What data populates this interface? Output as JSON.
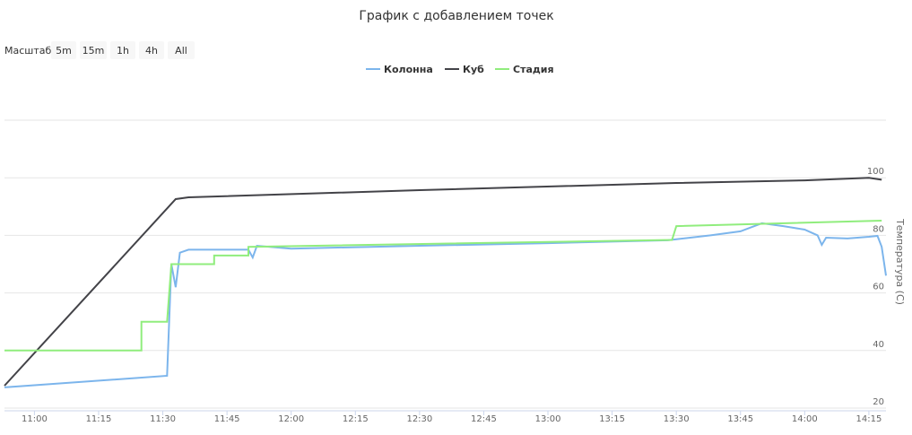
{
  "chart_data": {
    "type": "line",
    "title": "График с добавлением точек",
    "range_selector": {
      "label": "Масштаб",
      "buttons": [
        "5m",
        "15m",
        "1h",
        "4h",
        "All"
      ]
    },
    "y_label": "Температура (С)",
    "xlim": [
      "10:53",
      "14:19"
    ],
    "xticks": [
      "11:00",
      "11:15",
      "11:30",
      "11:45",
      "12:00",
      "12:15",
      "12:30",
      "12:45",
      "13:00",
      "13:15",
      "13:30",
      "13:45",
      "14:00",
      "14:15"
    ],
    "ylim": [
      20,
      120
    ],
    "yticks": [
      20,
      40,
      60,
      80,
      100
    ],
    "grid": true,
    "series": [
      {
        "name": "Колонна",
        "color": "#7cb5ec",
        "x": [
          "10:53",
          "11:31",
          "11:32",
          "11:33",
          "11:34",
          "11:36",
          "11:50",
          "11:51",
          "11:52",
          "12:00",
          "12:30",
          "13:00",
          "13:28",
          "13:38",
          "13:45",
          "13:50",
          "13:55",
          "14:00",
          "14:03",
          "14:04",
          "14:05",
          "14:10",
          "14:15",
          "14:17",
          "14:18",
          "14:19"
        ],
        "values": [
          27.2,
          31.2,
          70,
          62,
          74,
          75,
          75,
          72.3,
          76.4,
          75.4,
          76.4,
          77.3,
          78.3,
          80,
          81.4,
          84.2,
          83.2,
          82,
          80,
          76.7,
          79.2,
          78.9,
          79.5,
          79.8,
          76,
          66
        ]
      },
      {
        "name": "Куб",
        "color": "#434348",
        "x": [
          "10:53",
          "11:33",
          "11:36",
          "12:30",
          "13:30",
          "14:00",
          "14:15",
          "14:18"
        ],
        "values": [
          27.8,
          92.6,
          93.2,
          95.7,
          98.2,
          99.1,
          100,
          99.3
        ]
      },
      {
        "name": "Стадия",
        "color": "#90ed7d",
        "x": [
          "10:53",
          "11:25",
          "11:25",
          "11:31",
          "11:32",
          "11:42",
          "11:42",
          "11:50",
          "11:50",
          "13:29",
          "13:30",
          "14:18"
        ],
        "values": [
          40,
          40,
          50,
          50,
          70,
          70,
          73,
          73,
          76,
          78.4,
          83.2,
          85.1
        ]
      }
    ]
  }
}
